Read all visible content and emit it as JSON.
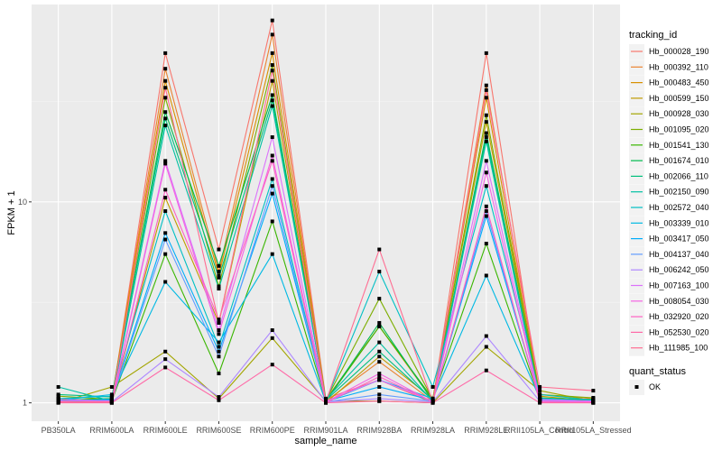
{
  "chart_data": {
    "type": "line",
    "title": "",
    "xlabel": "sample_name",
    "ylabel": "FPKM + 1",
    "y_scale": "log10",
    "ylim": [
      0.81,
      96
    ],
    "y_ticks": [
      {
        "value": 1,
        "label": "1"
      },
      {
        "value": 10,
        "label": "10"
      }
    ],
    "y_minor_ticks": [
      3.1623,
      31.623
    ],
    "grid": true,
    "categories": [
      "PB350LA",
      "RRIM600LA",
      "RRIM600LE",
      "RRIM600SE",
      "RRIM600PE",
      "RRIM901LA",
      "RRIM928BA",
      "RRIM928LA",
      "RRIM928LE",
      "RRII105LA_Control",
      "RRII105LA_Stressed"
    ],
    "legend": {
      "position": "right",
      "color_title": "tracking_id",
      "shape_title": "quant_status",
      "shape_entries": [
        "OK"
      ]
    },
    "series": [
      {
        "name": "Hb_000028_190",
        "color": "#F8766D",
        "values": [
          1.05,
          1.02,
          55,
          5.8,
          80,
          1.05,
          1.3,
          1.0,
          55,
          1.05,
          1.0
        ]
      },
      {
        "name": "Hb_000392_110",
        "color": "#EA8331",
        "values": [
          1.02,
          1.03,
          46,
          4.5,
          68,
          1.02,
          1.6,
          1.02,
          38,
          1.1,
          1.05
        ]
      },
      {
        "name": "Hb_000483_450",
        "color": "#D89000",
        "values": [
          1.03,
          1.05,
          40,
          4.3,
          55,
          1.04,
          2.4,
          1.03,
          33,
          1.05,
          1.04
        ]
      },
      {
        "name": "Hb_000599_150",
        "color": "#C09B00",
        "values": [
          1.05,
          1.0,
          10.5,
          2.5,
          40,
          1.0,
          1.7,
          1.05,
          25,
          1.08,
          1.02
        ]
      },
      {
        "name": "Hb_000928_030",
        "color": "#A3A500",
        "values": [
          1.0,
          1.2,
          1.8,
          1.05,
          2.1,
          1.02,
          1.02,
          1.0,
          1.9,
          1.15,
          1.02
        ]
      },
      {
        "name": "Hb_001095_020",
        "color": "#7CAE00",
        "values": [
          1.08,
          1.04,
          33,
          3.8,
          48,
          1.03,
          3.3,
          1.04,
          27,
          1.1,
          1.06
        ]
      },
      {
        "name": "Hb_001541_130",
        "color": "#39B600",
        "values": [
          1.04,
          1.02,
          5.5,
          1.4,
          8.0,
          1.02,
          2.4,
          1.05,
          6.2,
          1.04,
          1.02
        ]
      },
      {
        "name": "Hb_001674_010",
        "color": "#00BB4E",
        "values": [
          1.03,
          1.05,
          28,
          4.8,
          34,
          1.02,
          2.5,
          1.02,
          22,
          1.06,
          1.03
        ]
      },
      {
        "name": "Hb_002066_110",
        "color": "#00BF7D",
        "values": [
          1.1,
          1.07,
          26,
          4.2,
          32,
          1.03,
          1.8,
          1.03,
          21,
          1.05,
          1.04
        ]
      },
      {
        "name": "Hb_002150_090",
        "color": "#00C1A3",
        "values": [
          1.2,
          1.02,
          24,
          3.7,
          30,
          1.04,
          2.0,
          1.02,
          20,
          1.03,
          1.02
        ]
      },
      {
        "name": "Hb_002572_040",
        "color": "#00BFC4",
        "values": [
          1.05,
          1.08,
          9.0,
          1.9,
          13,
          1.02,
          4.5,
          1.2,
          12,
          1.1,
          1.03
        ]
      },
      {
        "name": "Hb_003339_010",
        "color": "#00B9E3",
        "values": [
          1.03,
          1.1,
          4.0,
          2.0,
          5.5,
          1.01,
          1.3,
          1.05,
          4.3,
          1.05,
          1.02
        ]
      },
      {
        "name": "Hb_003417_050",
        "color": "#00ADFA",
        "values": [
          1.02,
          1.04,
          7.0,
          1.8,
          11,
          1.02,
          1.2,
          1.03,
          8.5,
          1.04,
          1.01
        ]
      },
      {
        "name": "Hb_004137_040",
        "color": "#619CFF",
        "values": [
          1.01,
          1.03,
          6.5,
          1.7,
          12,
          1.01,
          1.1,
          1.02,
          9.0,
          1.03,
          1.01
        ]
      },
      {
        "name": "Hb_006242_050",
        "color": "#AE87FF",
        "values": [
          1.02,
          1.01,
          1.65,
          1.07,
          2.3,
          1.01,
          1.05,
          1.01,
          2.15,
          1.02,
          1.01
        ]
      },
      {
        "name": "Hb_007163_100",
        "color": "#DB72FB",
        "values": [
          1.04,
          1.02,
          16,
          2.3,
          21,
          1.02,
          1.3,
          1.02,
          16,
          1.04,
          1.02
        ]
      },
      {
        "name": "Hb_008054_030",
        "color": "#F564E3",
        "values": [
          1.02,
          1.01,
          15.5,
          2.2,
          17,
          1.01,
          1.4,
          1.01,
          14,
          1.02,
          1.01
        ]
      },
      {
        "name": "Hb_032920_020",
        "color": "#FF61C3",
        "values": [
          1.01,
          1.0,
          11.5,
          2.6,
          16,
          1.0,
          1.35,
          1.01,
          9.5,
          1.01,
          1.0
        ]
      },
      {
        "name": "Hb_052530_020",
        "color": "#FF69A7",
        "values": [
          1.0,
          1.0,
          1.5,
          1.03,
          1.55,
          1.0,
          1.02,
          1.0,
          1.45,
          1.0,
          1.0
        ]
      },
      {
        "name": "Hb_111985_100",
        "color": "#FF6C91",
        "values": [
          1.01,
          1.01,
          37,
          2.5,
          45,
          1.01,
          5.8,
          1.01,
          36,
          1.2,
          1.15
        ]
      }
    ]
  }
}
